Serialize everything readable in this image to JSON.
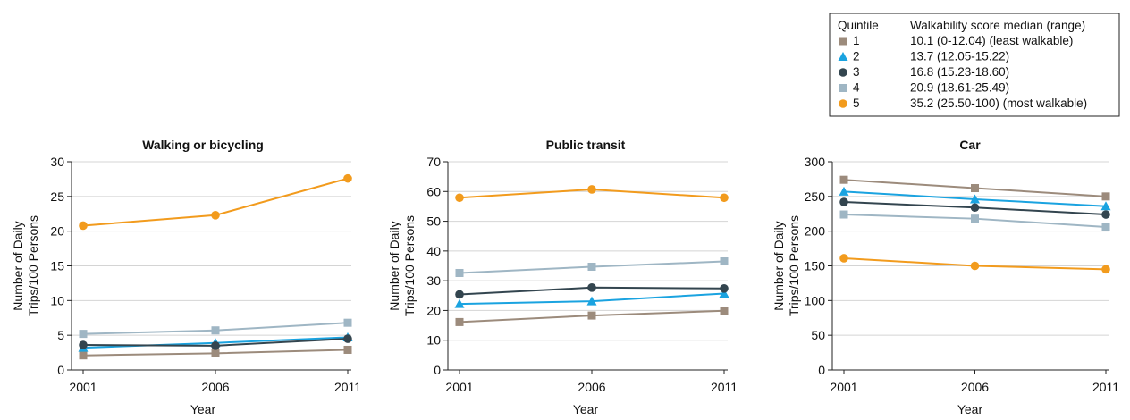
{
  "legend": {
    "header_quintile": "Quintile",
    "header_score": "Walkability score median (range)",
    "entries": [
      {
        "quintile": "1",
        "label": "10.1 (0-12.04) (least walkable)",
        "color": "#9c8b7c",
        "marker": "square"
      },
      {
        "quintile": "2",
        "label": "13.7 (12.05-15.22)",
        "color": "#1aa3e0",
        "marker": "triangle"
      },
      {
        "quintile": "3",
        "label": "16.8 (15.23-18.60)",
        "color": "#33454f",
        "marker": "circle"
      },
      {
        "quintile": "4",
        "label": "20.9 (18.61-25.49)",
        "color": "#9fb6c4",
        "marker": "square"
      },
      {
        "quintile": "5",
        "label": "35.2 (25.50-100) (most walkable)",
        "color": "#f29b1d",
        "marker": "circle"
      }
    ]
  },
  "chart_data": [
    {
      "type": "line",
      "title": "Walking or bicycling",
      "xlabel": "Year",
      "ylabel": [
        "Number of Daily",
        "Trips/100 Persons"
      ],
      "x": [
        "2001",
        "2006",
        "2011"
      ],
      "ylim": [
        0,
        30
      ],
      "yticks": [
        0,
        5,
        10,
        15,
        20,
        25,
        30
      ],
      "series": [
        {
          "name": "1",
          "values": [
            2.1,
            2.4,
            2.9
          ]
        },
        {
          "name": "2",
          "values": [
            3.2,
            3.9,
            4.7
          ]
        },
        {
          "name": "3",
          "values": [
            3.6,
            3.5,
            4.5
          ]
        },
        {
          "name": "4",
          "values": [
            5.2,
            5.7,
            6.8
          ]
        },
        {
          "name": "5",
          "values": [
            20.8,
            22.3,
            27.6
          ]
        }
      ]
    },
    {
      "type": "line",
      "title": "Public transit",
      "xlabel": "Year",
      "ylabel": [
        "Number of Daily",
        "Trips/100 Persons"
      ],
      "x": [
        "2001",
        "2006",
        "2011"
      ],
      "ylim": [
        0,
        70
      ],
      "yticks": [
        0,
        10,
        20,
        30,
        40,
        50,
        60,
        70
      ],
      "series": [
        {
          "name": "1",
          "values": [
            16.1,
            18.3,
            19.9
          ]
        },
        {
          "name": "2",
          "values": [
            22.2,
            23.1,
            25.7
          ]
        },
        {
          "name": "3",
          "values": [
            25.4,
            27.7,
            27.4
          ]
        },
        {
          "name": "4",
          "values": [
            32.6,
            34.7,
            36.5
          ]
        },
        {
          "name": "5",
          "values": [
            57.9,
            60.7,
            57.9
          ]
        }
      ]
    },
    {
      "type": "line",
      "title": "Car",
      "xlabel": "Year",
      "ylabel": [
        "Number of Daily",
        "Trips/100 Persons"
      ],
      "x": [
        "2001",
        "2006",
        "2011"
      ],
      "ylim": [
        0,
        300
      ],
      "yticks": [
        0,
        50,
        100,
        150,
        200,
        250,
        300
      ],
      "series": [
        {
          "name": "1",
          "values": [
            274,
            262,
            250
          ]
        },
        {
          "name": "2",
          "values": [
            257,
            246,
            236
          ]
        },
        {
          "name": "3",
          "values": [
            242,
            234,
            224
          ]
        },
        {
          "name": "4",
          "values": [
            224,
            218,
            206
          ]
        },
        {
          "name": "5",
          "values": [
            161,
            150,
            145
          ]
        }
      ]
    }
  ]
}
